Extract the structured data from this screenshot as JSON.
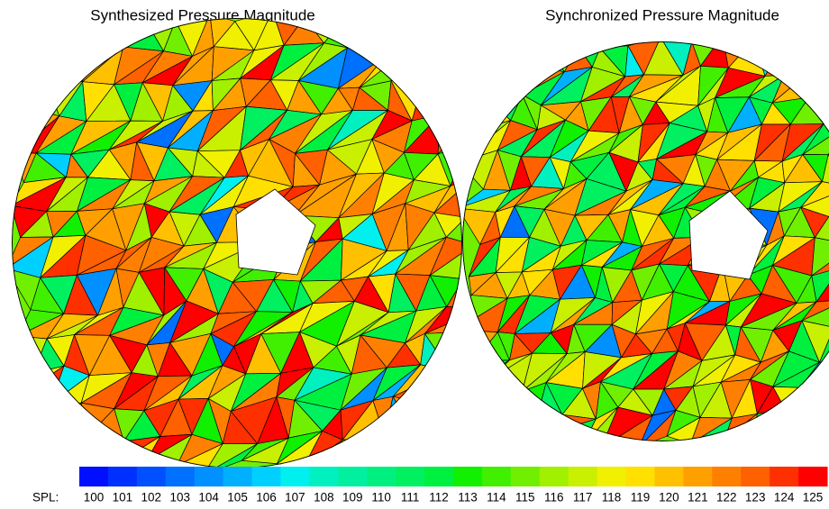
{
  "panels": [
    {
      "title": "Synthesized Pressure Magnitude"
    },
    {
      "title": "Synchronized Pressure Magnitude"
    }
  ],
  "colorbar": {
    "label": "SPL:",
    "ticks": [
      100,
      101,
      102,
      103,
      104,
      105,
      106,
      107,
      108,
      109,
      110,
      111,
      112,
      113,
      114,
      115,
      116,
      117,
      118,
      119,
      120,
      121,
      122,
      123,
      124,
      125
    ],
    "colors": [
      "#0010ff",
      "#0030ff",
      "#0050ff",
      "#0070ff",
      "#0090ff",
      "#00b0ff",
      "#00d0ff",
      "#00f0f0",
      "#00f0c0",
      "#00f0a0",
      "#00f080",
      "#00f060",
      "#00f040",
      "#10f000",
      "#40f000",
      "#70f000",
      "#a0f000",
      "#c8f000",
      "#f0f000",
      "#ffe000",
      "#ffc000",
      "#ffa000",
      "#ff8000",
      "#ff6000",
      "#ff3000",
      "#ff0000"
    ]
  }
}
